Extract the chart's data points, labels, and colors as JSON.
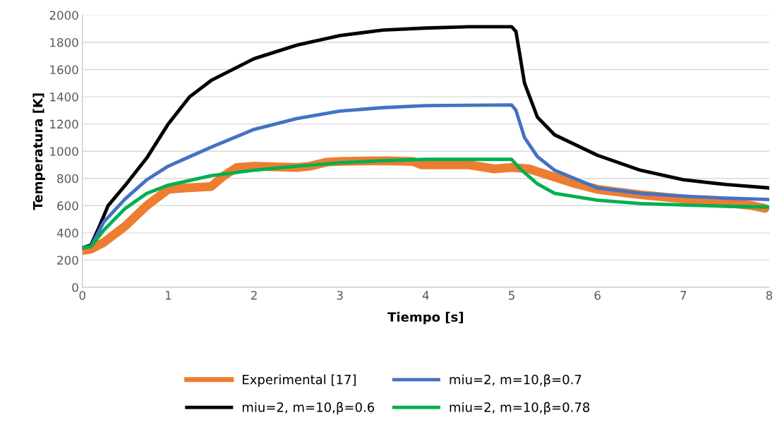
{
  "chart_data": {
    "type": "line",
    "xlabel": "Tiempo [s]",
    "ylabel": "Temperatura [K]",
    "xlim": [
      0,
      8
    ],
    "xticks": [
      0,
      1,
      2,
      3,
      4,
      5,
      6,
      7,
      8
    ],
    "ylim": [
      0,
      2000
    ],
    "yticks": [
      0,
      200,
      400,
      600,
      800,
      1000,
      1200,
      1400,
      1600,
      1800,
      2000
    ],
    "grid": "y",
    "legend": "bottom",
    "marker": "none",
    "line_style": "solid",
    "series": [
      {
        "name": "Experimental [17]",
        "color": "#ed7d31",
        "x": [
          0,
          0.1,
          0.25,
          0.5,
          0.75,
          1,
          1.2,
          1.5,
          1.65,
          1.8,
          2,
          2.5,
          2.65,
          2.85,
          3,
          3.5,
          3.85,
          3.95,
          4.5,
          4.8,
          5,
          5.2,
          5.4,
          5.75,
          6,
          6.5,
          7,
          7.5,
          7.8,
          7.95
        ],
        "values": [
          270,
          280,
          330,
          450,
          600,
          720,
          730,
          740,
          820,
          880,
          890,
          880,
          890,
          920,
          925,
          930,
          925,
          900,
          900,
          870,
          880,
          870,
          830,
          760,
          720,
          680,
          650,
          620,
          600,
          580
        ]
      },
      {
        "name": "miu=2, m=10,β=0.6",
        "color": "#000000",
        "x": [
          0,
          0.1,
          0.2,
          0.3,
          0.5,
          0.75,
          1,
          1.25,
          1.5,
          2,
          2.5,
          3,
          3.5,
          4,
          4.5,
          5,
          5.05,
          5.15,
          5.3,
          5.5,
          6,
          6.5,
          7,
          7.5,
          8
        ],
        "values": [
          290,
          310,
          450,
          600,
          750,
          950,
          1200,
          1400,
          1520,
          1680,
          1780,
          1850,
          1890,
          1905,
          1915,
          1915,
          1880,
          1500,
          1250,
          1120,
          970,
          860,
          790,
          755,
          730
        ]
      },
      {
        "name": "miu=2, m=10,β=0.7",
        "color": "#4472c4",
        "x": [
          0,
          0.1,
          0.25,
          0.5,
          0.75,
          1,
          1.5,
          2,
          2.5,
          3,
          3.5,
          4,
          5,
          5.05,
          5.15,
          5.3,
          5.5,
          6,
          6.5,
          7,
          7.5,
          8
        ],
        "values": [
          290,
          300,
          480,
          650,
          790,
          890,
          1030,
          1160,
          1240,
          1295,
          1320,
          1335,
          1340,
          1300,
          1100,
          960,
          860,
          730,
          690,
          670,
          655,
          645
        ]
      },
      {
        "name": "miu=2, m=10,β=0.78",
        "color": "#00b050",
        "x": [
          0,
          0.1,
          0.25,
          0.5,
          0.75,
          1,
          1.5,
          2,
          2.5,
          3,
          3.5,
          4,
          5,
          5.1,
          5.3,
          5.5,
          6,
          6.5,
          7,
          7.5,
          8
        ],
        "values": [
          290,
          300,
          420,
          580,
          690,
          750,
          820,
          860,
          890,
          915,
          930,
          940,
          940,
          870,
          760,
          690,
          640,
          615,
          605,
          595,
          590
        ]
      }
    ]
  }
}
